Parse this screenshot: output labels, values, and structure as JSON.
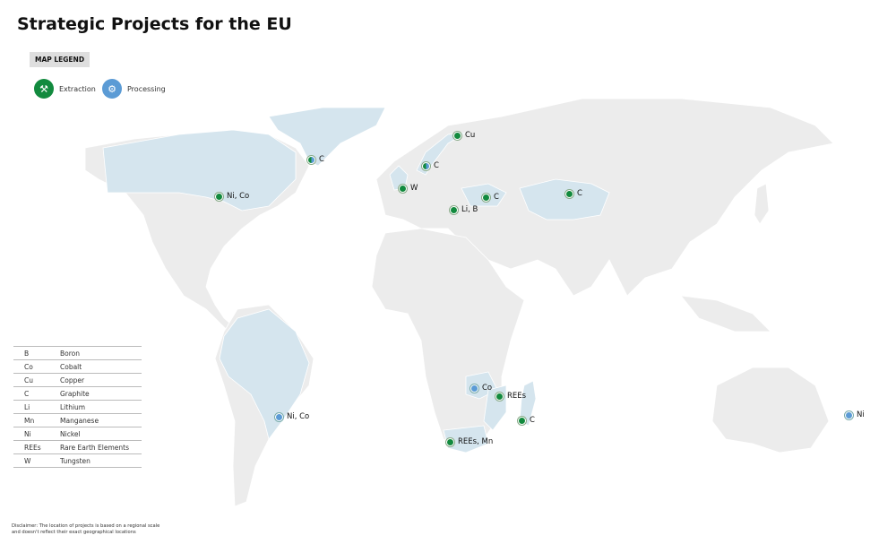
{
  "title": "Strategic Projects for the EU",
  "legend": {
    "tag": "MAP LEGEND",
    "items": [
      {
        "label": "Extraction",
        "icon": "pickaxe-icon",
        "color": "#128a3e"
      },
      {
        "label": "Processing",
        "icon": "gears-icon",
        "color": "#5b9bd5"
      }
    ]
  },
  "colors": {
    "land": "#ececec",
    "highlighted_country": "#d5e5ee",
    "border": "#ffffff"
  },
  "projects": [
    {
      "label": "Ni, Co",
      "type": "extraction",
      "region": "Canada"
    },
    {
      "label": "C",
      "type": "extraction and processing",
      "region": "Greenland"
    },
    {
      "label": "C",
      "type": "extraction and processing",
      "region": "Norway"
    },
    {
      "label": "Cu",
      "type": "extraction",
      "region": "Northern Scandinavia"
    },
    {
      "label": "W",
      "type": "extraction",
      "region": "United Kingdom"
    },
    {
      "label": "Li, B",
      "type": "extraction",
      "region": "Serbia"
    },
    {
      "label": "C",
      "type": "extraction",
      "region": "Ukraine"
    },
    {
      "label": "C",
      "type": "extraction",
      "region": "Kazakhstan"
    },
    {
      "label": "Ni, Co",
      "type": "processing",
      "region": "Brazil"
    },
    {
      "label": "Co",
      "type": "processing",
      "region": "Zambia"
    },
    {
      "label": "REEs",
      "type": "extraction",
      "region": "Malawi"
    },
    {
      "label": "C",
      "type": "extraction",
      "region": "Madagascar"
    },
    {
      "label": "REEs, Mn",
      "type": "extraction",
      "region": "South Africa"
    },
    {
      "label": "Ni",
      "type": "processing",
      "region": "New Caledonia"
    }
  ],
  "abbreviations": [
    {
      "code": "B",
      "name": "Boron"
    },
    {
      "code": "Co",
      "name": "Cobalt"
    },
    {
      "code": "Cu",
      "name": "Copper"
    },
    {
      "code": "C",
      "name": "Graphite"
    },
    {
      "code": "Li",
      "name": "Lithium"
    },
    {
      "code": "Mn",
      "name": "Manganese"
    },
    {
      "code": "Ni",
      "name": "Nickel"
    },
    {
      "code": "REEs",
      "name": "Rare Earth Elements"
    },
    {
      "code": "W",
      "name": "Tungsten"
    }
  ],
  "disclaimer": "Disclaimer: The location of projects is based on a regional scale and doesn't reflect their exact geographical locations"
}
